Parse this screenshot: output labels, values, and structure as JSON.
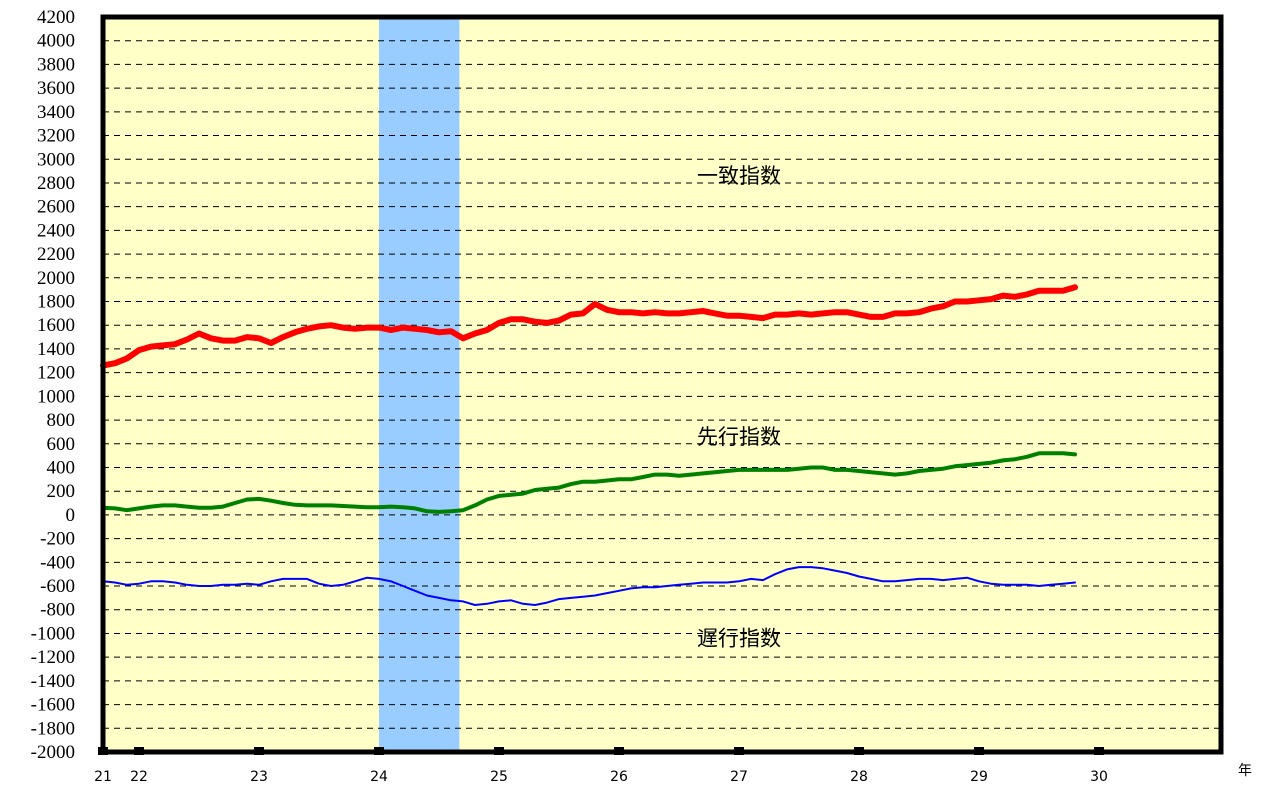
{
  "chart_data": {
    "type": "line",
    "x_unit_label": "年",
    "ylim": [
      -2000,
      4200
    ],
    "y_ticks": [
      4200,
      4000,
      3800,
      3600,
      3400,
      3200,
      3000,
      2800,
      2600,
      2400,
      2200,
      2000,
      1800,
      1600,
      1400,
      1200,
      1000,
      800,
      600,
      400,
      200,
      0,
      -200,
      -400,
      -600,
      -800,
      -1000,
      -1200,
      -1400,
      -1600,
      -1800,
      -2000
    ],
    "x_ticks": [
      {
        "label": "21",
        "x": 21.0
      },
      {
        "label": "22",
        "x": 21.3
      },
      {
        "label": "23",
        "x": 22.3
      },
      {
        "label": "24",
        "x": 23.3
      },
      {
        "label": "25",
        "x": 24.3
      },
      {
        "label": "26",
        "x": 25.3
      },
      {
        "label": "27",
        "x": 26.3
      },
      {
        "label": "28",
        "x": 27.3
      },
      {
        "label": "29",
        "x": 28.3
      },
      {
        "label": "30",
        "x": 29.3
      }
    ],
    "xlim": [
      21.0,
      30.0
    ],
    "grid": true,
    "plot_background": "#ffffc8",
    "shaded_regions": [
      {
        "x_start": 23.3,
        "x_end": 23.97,
        "color": "#99ccff"
      }
    ],
    "series": [
      {
        "name": "一致指数",
        "color": "#ff0000",
        "width": 6,
        "label_at": {
          "x": 26.3,
          "y": 2800
        },
        "points": [
          [
            21.0,
            1260
          ],
          [
            21.1,
            1280
          ],
          [
            21.2,
            1320
          ],
          [
            21.3,
            1390
          ],
          [
            21.4,
            1420
          ],
          [
            21.5,
            1430
          ],
          [
            21.6,
            1440
          ],
          [
            21.7,
            1480
          ],
          [
            21.8,
            1530
          ],
          [
            21.9,
            1490
          ],
          [
            22.0,
            1470
          ],
          [
            22.1,
            1470
          ],
          [
            22.2,
            1500
          ],
          [
            22.3,
            1490
          ],
          [
            22.4,
            1450
          ],
          [
            22.5,
            1500
          ],
          [
            22.6,
            1540
          ],
          [
            22.7,
            1570
          ],
          [
            22.8,
            1590
          ],
          [
            22.9,
            1600
          ],
          [
            23.0,
            1580
          ],
          [
            23.1,
            1570
          ],
          [
            23.2,
            1580
          ],
          [
            23.3,
            1580
          ],
          [
            23.4,
            1560
          ],
          [
            23.5,
            1580
          ],
          [
            23.6,
            1570
          ],
          [
            23.7,
            1560
          ],
          [
            23.8,
            1540
          ],
          [
            23.9,
            1550
          ],
          [
            24.0,
            1490
          ],
          [
            24.1,
            1530
          ],
          [
            24.2,
            1560
          ],
          [
            24.3,
            1620
          ],
          [
            24.4,
            1650
          ],
          [
            24.5,
            1650
          ],
          [
            24.6,
            1630
          ],
          [
            24.7,
            1620
          ],
          [
            24.8,
            1640
          ],
          [
            24.9,
            1690
          ],
          [
            25.0,
            1700
          ],
          [
            25.1,
            1780
          ],
          [
            25.2,
            1730
          ],
          [
            25.3,
            1710
          ],
          [
            25.4,
            1710
          ],
          [
            25.5,
            1700
          ],
          [
            25.6,
            1710
          ],
          [
            25.7,
            1700
          ],
          [
            25.8,
            1700
          ],
          [
            25.9,
            1710
          ],
          [
            26.0,
            1720
          ],
          [
            26.1,
            1700
          ],
          [
            26.2,
            1680
          ],
          [
            26.3,
            1680
          ],
          [
            26.4,
            1670
          ],
          [
            26.5,
            1660
          ],
          [
            26.6,
            1690
          ],
          [
            26.7,
            1690
          ],
          [
            26.8,
            1700
          ],
          [
            26.9,
            1690
          ],
          [
            27.0,
            1700
          ],
          [
            27.1,
            1710
          ],
          [
            27.2,
            1710
          ],
          [
            27.3,
            1690
          ],
          [
            27.4,
            1670
          ],
          [
            27.5,
            1670
          ],
          [
            27.6,
            1700
          ],
          [
            27.7,
            1700
          ],
          [
            27.8,
            1710
          ],
          [
            27.9,
            1740
          ],
          [
            28.0,
            1760
          ],
          [
            28.1,
            1800
          ],
          [
            28.2,
            1800
          ],
          [
            28.3,
            1810
          ],
          [
            28.4,
            1820
          ],
          [
            28.5,
            1850
          ],
          [
            28.6,
            1840
          ],
          [
            28.7,
            1860
          ],
          [
            28.8,
            1890
          ],
          [
            28.9,
            1890
          ],
          [
            29.0,
            1890
          ],
          [
            29.1,
            1920
          ]
        ]
      },
      {
        "name": "先行指数",
        "color": "#008000",
        "width": 4,
        "label_at": {
          "x": 26.3,
          "y": 600
        },
        "points": [
          [
            21.0,
            60
          ],
          [
            21.1,
            55
          ],
          [
            21.2,
            40
          ],
          [
            21.3,
            55
          ],
          [
            21.4,
            70
          ],
          [
            21.5,
            80
          ],
          [
            21.6,
            80
          ],
          [
            21.7,
            70
          ],
          [
            21.8,
            60
          ],
          [
            21.9,
            60
          ],
          [
            22.0,
            70
          ],
          [
            22.1,
            100
          ],
          [
            22.2,
            130
          ],
          [
            22.3,
            135
          ],
          [
            22.4,
            120
          ],
          [
            22.5,
            100
          ],
          [
            22.6,
            85
          ],
          [
            22.7,
            80
          ],
          [
            22.8,
            80
          ],
          [
            22.9,
            80
          ],
          [
            23.0,
            75
          ],
          [
            23.1,
            70
          ],
          [
            23.2,
            65
          ],
          [
            23.3,
            65
          ],
          [
            23.4,
            70
          ],
          [
            23.5,
            65
          ],
          [
            23.6,
            55
          ],
          [
            23.7,
            30
          ],
          [
            23.8,
            25
          ],
          [
            23.9,
            30
          ],
          [
            24.0,
            40
          ],
          [
            24.1,
            80
          ],
          [
            24.2,
            130
          ],
          [
            24.3,
            160
          ],
          [
            24.4,
            170
          ],
          [
            24.5,
            180
          ],
          [
            24.6,
            210
          ],
          [
            24.7,
            220
          ],
          [
            24.8,
            230
          ],
          [
            24.9,
            260
          ],
          [
            25.0,
            280
          ],
          [
            25.1,
            280
          ],
          [
            25.2,
            290
          ],
          [
            25.3,
            300
          ],
          [
            25.4,
            300
          ],
          [
            25.5,
            320
          ],
          [
            25.6,
            340
          ],
          [
            25.7,
            340
          ],
          [
            25.8,
            330
          ],
          [
            25.9,
            340
          ],
          [
            26.0,
            350
          ],
          [
            26.1,
            360
          ],
          [
            26.2,
            370
          ],
          [
            26.3,
            380
          ],
          [
            26.4,
            380
          ],
          [
            26.5,
            380
          ],
          [
            26.6,
            380
          ],
          [
            26.7,
            380
          ],
          [
            26.8,
            390
          ],
          [
            26.9,
            400
          ],
          [
            27.0,
            400
          ],
          [
            27.1,
            380
          ],
          [
            27.2,
            380
          ],
          [
            27.3,
            370
          ],
          [
            27.4,
            360
          ],
          [
            27.5,
            350
          ],
          [
            27.6,
            340
          ],
          [
            27.7,
            350
          ],
          [
            27.8,
            370
          ],
          [
            27.9,
            380
          ],
          [
            28.0,
            390
          ],
          [
            28.1,
            410
          ],
          [
            28.2,
            420
          ],
          [
            28.3,
            430
          ],
          [
            28.4,
            440
          ],
          [
            28.5,
            460
          ],
          [
            28.6,
            470
          ],
          [
            28.7,
            490
          ],
          [
            28.8,
            520
          ],
          [
            28.9,
            520
          ],
          [
            29.0,
            520
          ],
          [
            29.1,
            510
          ]
        ]
      },
      {
        "name": "遅行指数",
        "color": "#0000ff",
        "width": 2,
        "label_at": {
          "x": 26.3,
          "y": -1100
        },
        "points": [
          [
            21.0,
            -560
          ],
          [
            21.1,
            -570
          ],
          [
            21.2,
            -590
          ],
          [
            21.3,
            -580
          ],
          [
            21.4,
            -560
          ],
          [
            21.5,
            -560
          ],
          [
            21.6,
            -570
          ],
          [
            21.7,
            -590
          ],
          [
            21.8,
            -600
          ],
          [
            21.9,
            -600
          ],
          [
            22.0,
            -590
          ],
          [
            22.1,
            -590
          ],
          [
            22.2,
            -580
          ],
          [
            22.3,
            -590
          ],
          [
            22.4,
            -560
          ],
          [
            22.5,
            -540
          ],
          [
            22.6,
            -540
          ],
          [
            22.7,
            -540
          ],
          [
            22.8,
            -580
          ],
          [
            22.9,
            -600
          ],
          [
            23.0,
            -590
          ],
          [
            23.1,
            -560
          ],
          [
            23.2,
            -530
          ],
          [
            23.3,
            -540
          ],
          [
            23.4,
            -560
          ],
          [
            23.5,
            -600
          ],
          [
            23.6,
            -640
          ],
          [
            23.7,
            -680
          ],
          [
            23.8,
            -700
          ],
          [
            23.9,
            -720
          ],
          [
            24.0,
            -730
          ],
          [
            24.1,
            -760
          ],
          [
            24.2,
            -750
          ],
          [
            24.3,
            -730
          ],
          [
            24.4,
            -720
          ],
          [
            24.5,
            -750
          ],
          [
            24.6,
            -760
          ],
          [
            24.7,
            -740
          ],
          [
            24.8,
            -710
          ],
          [
            24.9,
            -700
          ],
          [
            25.0,
            -690
          ],
          [
            25.1,
            -680
          ],
          [
            25.2,
            -660
          ],
          [
            25.3,
            -640
          ],
          [
            25.4,
            -620
          ],
          [
            25.5,
            -610
          ],
          [
            25.6,
            -610
          ],
          [
            25.7,
            -600
          ],
          [
            25.8,
            -590
          ],
          [
            25.9,
            -580
          ],
          [
            26.0,
            -570
          ],
          [
            26.1,
            -570
          ],
          [
            26.2,
            -570
          ],
          [
            26.3,
            -560
          ],
          [
            26.4,
            -540
          ],
          [
            26.5,
            -550
          ],
          [
            26.6,
            -500
          ],
          [
            26.7,
            -460
          ],
          [
            26.8,
            -440
          ],
          [
            26.9,
            -440
          ],
          [
            27.0,
            -450
          ],
          [
            27.1,
            -470
          ],
          [
            27.2,
            -490
          ],
          [
            27.3,
            -520
          ],
          [
            27.4,
            -540
          ],
          [
            27.5,
            -560
          ],
          [
            27.6,
            -560
          ],
          [
            27.7,
            -550
          ],
          [
            27.8,
            -540
          ],
          [
            27.9,
            -540
          ],
          [
            28.0,
            -550
          ],
          [
            28.1,
            -540
          ],
          [
            28.2,
            -530
          ],
          [
            28.3,
            -560
          ],
          [
            28.4,
            -580
          ],
          [
            28.5,
            -590
          ],
          [
            28.6,
            -590
          ],
          [
            28.7,
            -590
          ],
          [
            28.8,
            -600
          ],
          [
            28.9,
            -590
          ],
          [
            29.0,
            -580
          ],
          [
            29.1,
            -570
          ]
        ]
      }
    ]
  }
}
